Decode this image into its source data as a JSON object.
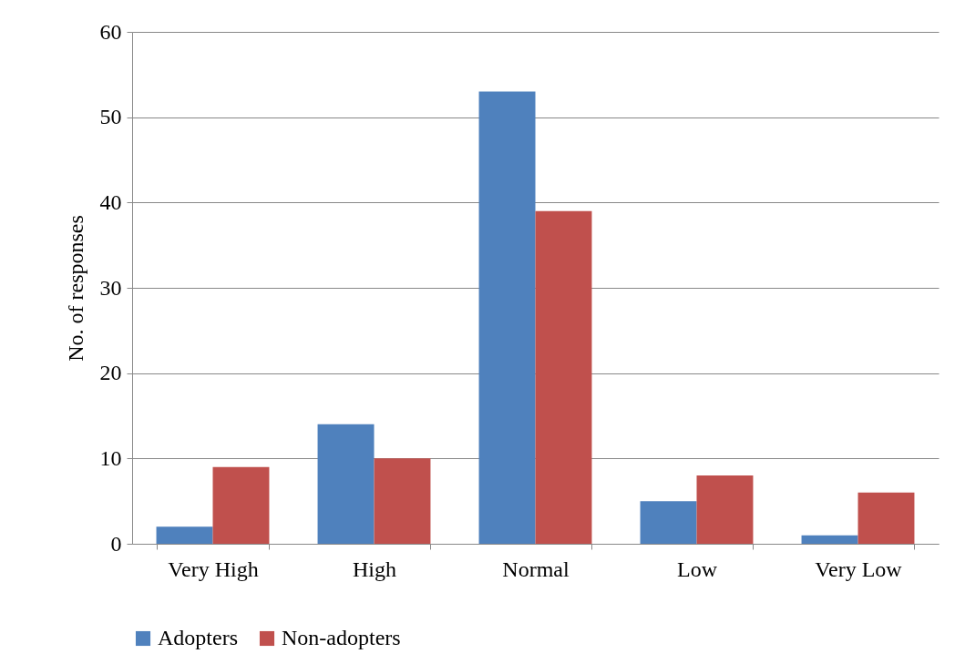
{
  "chart_data": {
    "type": "bar",
    "ylabel": "No. of responses",
    "categories": [
      "Very High",
      "High",
      "Normal",
      "Low",
      "Very Low"
    ],
    "series": [
      {
        "name": "Adopters",
        "color": "#4f81bd",
        "values": [
          2,
          14,
          53,
          5,
          1
        ]
      },
      {
        "name": "Non-adopters",
        "color": "#c0504d",
        "values": [
          9,
          10,
          39,
          8,
          6
        ]
      }
    ],
    "ylim": [
      0,
      60
    ],
    "yticks": [
      0,
      10,
      20,
      30,
      40,
      50,
      60
    ],
    "grid": "y",
    "legend": "bottom"
  }
}
